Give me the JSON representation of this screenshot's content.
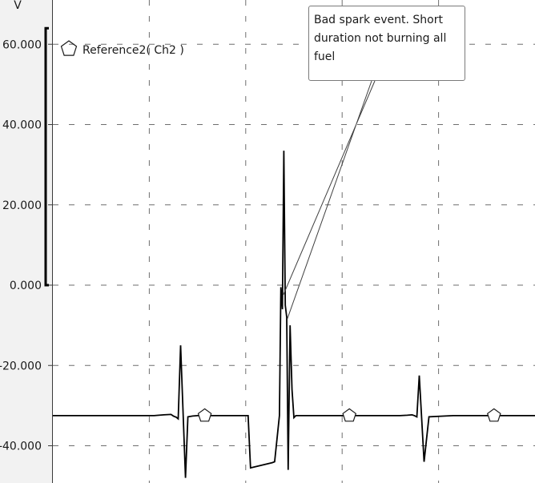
{
  "chart_data": {
    "type": "line",
    "unit_label": "V",
    "ylim": [
      -48,
      64
    ],
    "yticks": [
      60,
      40,
      20,
      0,
      -20,
      -40
    ],
    "ytick_labels": [
      "60.000",
      "40.000",
      "20.000",
      "0.000",
      "-20.000",
      "-40.000"
    ],
    "grid": true,
    "grid_style": "dashed",
    "legend": {
      "entries": [
        "Reference2( Ch2 )"
      ],
      "placement": "top-left",
      "marker": "pentagon"
    },
    "range_bracket": [
      0,
      64
    ],
    "series": [
      {
        "name": "Reference2( Ch2 )",
        "color": "#000000",
        "x": [
          0,
          21,
          22,
          23,
          24.5,
          25,
          25.6,
          26,
          26.5,
          27.5,
          28,
          29,
          30,
          31,
          40.5,
          41,
          45.5,
          46,
          47,
          47.3,
          47.6,
          47.9,
          48.2,
          48.5,
          48.8,
          49.2,
          49.6,
          50,
          50.4,
          50.7,
          51,
          51.5,
          52,
          53,
          56,
          61,
          66,
          72,
          73.5,
          74.5,
          75,
          75.5,
          76,
          77,
          78,
          83,
          95,
          100
        ],
        "y": [
          -32.5,
          -32.5,
          -32.4,
          -32.3,
          -32.2,
          -32.6,
          -32.9,
          -33.3,
          -15,
          -48,
          -32.8,
          -32.6,
          -32.5,
          -32.5,
          -32.5,
          -45.5,
          -44.2,
          -44,
          -32.5,
          -0.5,
          -6,
          33.5,
          -5,
          -8,
          -46,
          -10,
          -26,
          -33,
          -32.5,
          -32.5,
          -32.5,
          -32.5,
          -32.5,
          -32.5,
          -32.5,
          -32.5,
          -32.5,
          -32.5,
          -32.4,
          -32.3,
          -32.5,
          -32.8,
          -22.5,
          -44,
          -32.8,
          -32.5,
          -32.5,
          -32.5
        ]
      }
    ],
    "markers": [
      {
        "shape": "pentagon",
        "x": 31.5,
        "y": -32.5
      },
      {
        "shape": "pentagon",
        "x": 61.5,
        "y": -32.5
      },
      {
        "shape": "pentagon",
        "x": 91.5,
        "y": -32.5
      }
    ],
    "annotation": {
      "text_lines": [
        "Bad spark event. Short",
        "duration not burning all",
        "fuel"
      ],
      "target": {
        "x": 48.3,
        "y": -8
      }
    }
  }
}
